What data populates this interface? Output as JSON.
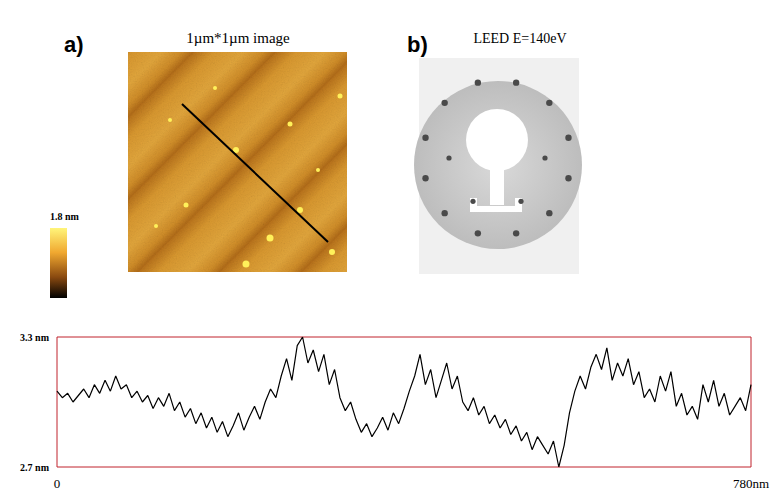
{
  "panel_a": {
    "letter": "a)",
    "title": "1µm*1µm image",
    "colorbar_label": "1.8 nm"
  },
  "panel_b": {
    "letter": "b)",
    "title": "LEED E=140eV"
  },
  "chart_data": {
    "type": "line",
    "x": [
      0,
      6,
      12,
      18,
      24,
      30,
      36,
      42,
      48,
      54,
      60,
      66,
      72,
      78,
      84,
      90,
      96,
      102,
      108,
      114,
      120,
      126,
      132,
      138,
      144,
      150,
      156,
      162,
      168,
      174,
      180,
      186,
      192,
      198,
      204,
      210,
      216,
      222,
      228,
      234,
      240,
      246,
      252,
      258,
      264,
      270,
      276,
      282,
      288,
      294,
      300,
      306,
      312,
      318,
      324,
      330,
      336,
      342,
      348,
      354,
      360,
      366,
      372,
      378,
      384,
      390,
      396,
      402,
      408,
      414,
      420,
      426,
      432,
      438,
      444,
      450,
      456,
      462,
      468,
      474,
      480,
      486,
      492,
      498,
      504,
      510,
      516,
      522,
      528,
      534,
      540,
      546,
      552,
      558,
      564,
      570,
      576,
      582,
      588,
      594,
      600,
      606,
      612,
      618,
      624,
      630,
      636,
      642,
      648,
      654,
      660,
      666,
      672,
      678,
      684,
      690,
      696,
      702,
      708,
      714,
      720,
      726,
      732,
      738,
      744,
      750,
      756,
      762,
      768,
      774,
      780
    ],
    "values": [
      3.05,
      3.02,
      3.04,
      3.0,
      3.03,
      3.06,
      3.02,
      3.08,
      3.04,
      3.1,
      3.05,
      3.12,
      3.06,
      3.08,
      3.02,
      3.05,
      3.0,
      3.03,
      2.97,
      3.02,
      2.98,
      3.04,
      2.96,
      3.0,
      2.93,
      2.97,
      2.9,
      2.95,
      2.88,
      2.93,
      2.86,
      2.91,
      2.84,
      2.89,
      2.95,
      2.87,
      2.93,
      2.98,
      2.92,
      3.0,
      3.06,
      3.02,
      3.12,
      3.2,
      3.1,
      3.26,
      3.3,
      3.18,
      3.24,
      3.14,
      3.22,
      3.08,
      3.15,
      3.02,
      2.96,
      3.0,
      2.92,
      2.86,
      2.9,
      2.84,
      2.88,
      2.93,
      2.87,
      2.95,
      2.9,
      2.97,
      3.05,
      3.12,
      3.22,
      3.08,
      3.15,
      3.02,
      3.1,
      3.18,
      3.06,
      3.12,
      3.0,
      2.96,
      3.02,
      2.94,
      2.98,
      2.9,
      2.94,
      2.88,
      2.92,
      2.85,
      2.89,
      2.82,
      2.86,
      2.78,
      2.84,
      2.8,
      2.76,
      2.82,
      2.7,
      2.8,
      2.95,
      3.05,
      3.12,
      3.06,
      3.16,
      3.22,
      3.15,
      3.25,
      3.1,
      3.18,
      3.12,
      3.2,
      3.08,
      3.14,
      3.02,
      3.06,
      3.0,
      3.12,
      3.05,
      3.14,
      2.98,
      3.04,
      2.94,
      2.98,
      2.92,
      3.08,
      3.0,
      3.1,
      2.98,
      3.04,
      2.94,
      2.98,
      3.02,
      2.96,
      3.08
    ],
    "color": "#000000",
    "xlim": [
      0,
      780
    ],
    "xticks": [
      0,
      {
        "value": 780,
        "label": "780nm"
      }
    ],
    "ylim": [
      2.7,
      3.3
    ],
    "yticks": [
      {
        "value": 2.7,
        "label": "2.7 nm"
      },
      {
        "value": 3.3,
        "label": "3.3 nm"
      }
    ],
    "grid": false
  }
}
